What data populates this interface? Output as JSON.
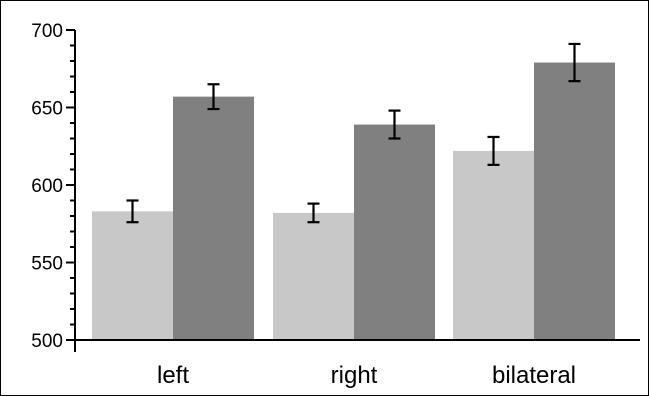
{
  "chart_data": {
    "type": "bar",
    "categories": [
      "left",
      "right",
      "bilateral"
    ],
    "series": [
      {
        "color": "#c8c8c8",
        "values": [
          583,
          582,
          622
        ],
        "error": [
          7,
          6,
          9
        ]
      },
      {
        "color": "#808080",
        "values": [
          657,
          639,
          679
        ],
        "error": [
          8,
          9,
          12
        ]
      }
    ],
    "title": "",
    "xlabel": "",
    "ylabel": "",
    "ylim": [
      500,
      700
    ],
    "yticks": [
      500,
      550,
      600,
      650,
      700
    ],
    "ytick_labels": [
      "500",
      "550",
      "600",
      "650",
      "700"
    ],
    "grid": false,
    "legend": false
  }
}
